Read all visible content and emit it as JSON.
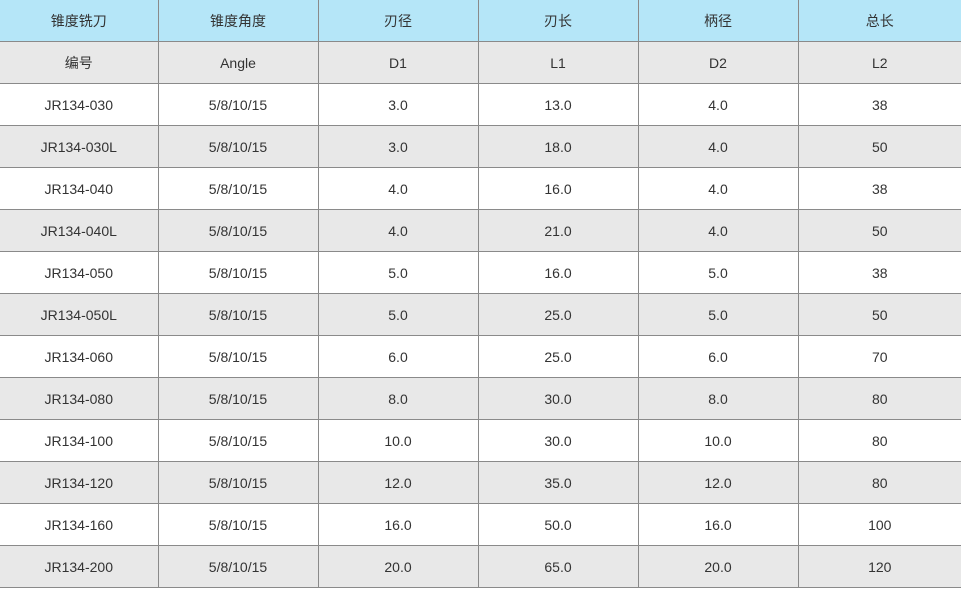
{
  "table": {
    "header": [
      "锥度铣刀",
      "锥度角度",
      "刃径",
      "刃长",
      "柄径",
      "总长"
    ],
    "subheader": [
      "编号",
      "Angle",
      "D1",
      "L1",
      "D2",
      "L2"
    ],
    "rows": [
      [
        "JR134-030",
        "5/8/10/15",
        "3.0",
        "13.0",
        "4.0",
        "38"
      ],
      [
        "JR134-030L",
        "5/8/10/15",
        "3.0",
        "18.0",
        "4.0",
        "50"
      ],
      [
        "JR134-040",
        "5/8/10/15",
        "4.0",
        "16.0",
        "4.0",
        "38"
      ],
      [
        "JR134-040L",
        "5/8/10/15",
        "4.0",
        "21.0",
        "4.0",
        "50"
      ],
      [
        "JR134-050",
        "5/8/10/15",
        "5.0",
        "16.0",
        "5.0",
        "38"
      ],
      [
        "JR134-050L",
        "5/8/10/15",
        "5.0",
        "25.0",
        "5.0",
        "50"
      ],
      [
        "JR134-060",
        "5/8/10/15",
        "6.0",
        "25.0",
        "6.0",
        "70"
      ],
      [
        "JR134-080",
        "5/8/10/15",
        "8.0",
        "30.0",
        "8.0",
        "80"
      ],
      [
        "JR134-100",
        "5/8/10/15",
        "10.0",
        "30.0",
        "10.0",
        "80"
      ],
      [
        "JR134-120",
        "5/8/10/15",
        "12.0",
        "35.0",
        "12.0",
        "80"
      ],
      [
        "JR134-160",
        "5/8/10/15",
        "16.0",
        "50.0",
        "16.0",
        "100"
      ],
      [
        "JR134-200",
        "5/8/10/15",
        "20.0",
        "65.0",
        "20.0",
        "120"
      ]
    ],
    "colors": {
      "header_bg": "#b5e6f8",
      "stripe_bg": "#e8e8e8",
      "border": "#8a8a8a"
    }
  }
}
